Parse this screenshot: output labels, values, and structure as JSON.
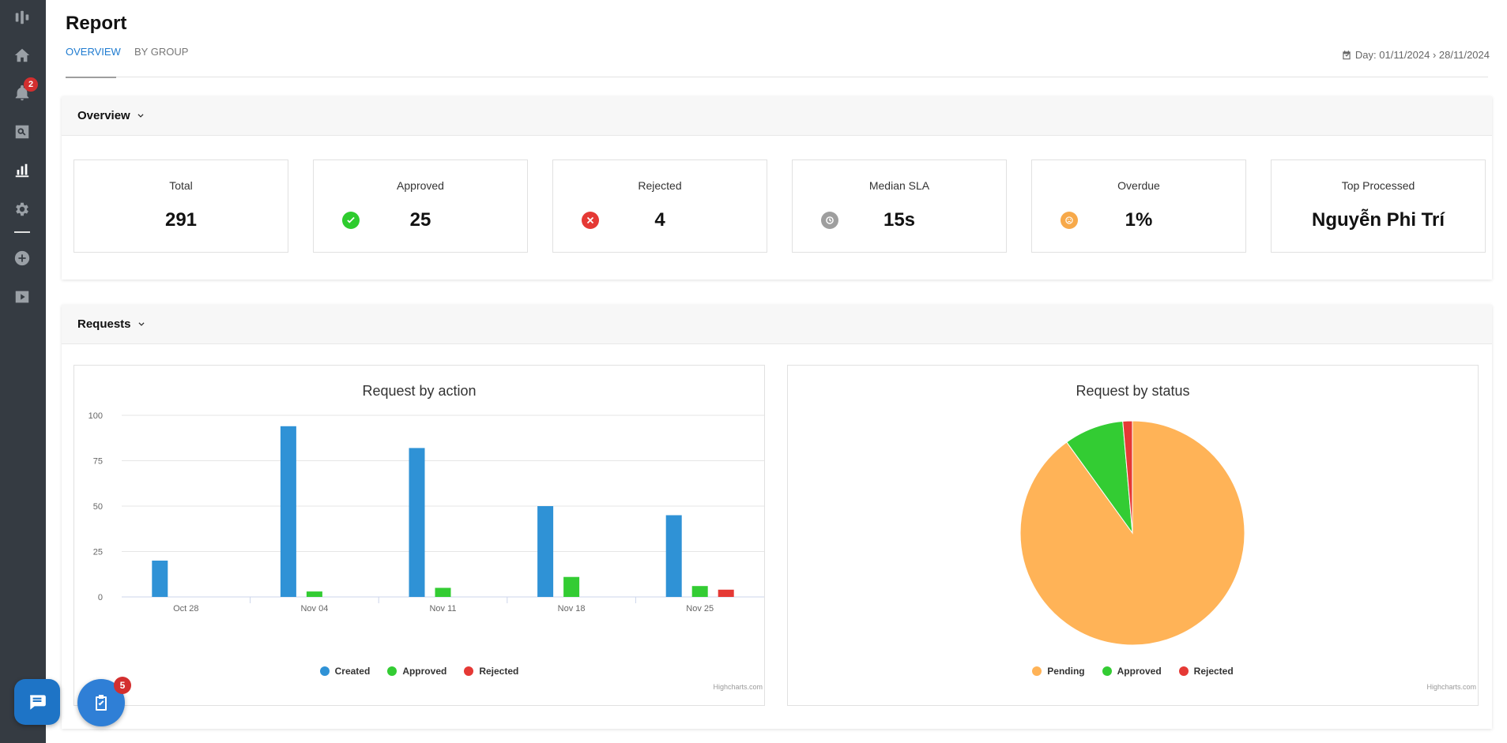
{
  "sidebar": {
    "items": [
      {
        "icon": "logo-icon"
      },
      {
        "icon": "home-icon"
      },
      {
        "icon": "bell-icon",
        "badge": "2"
      },
      {
        "icon": "search-document-icon"
      },
      {
        "icon": "bar-chart-icon",
        "active": true
      },
      {
        "icon": "gear-icon"
      },
      {
        "icon": "plus-circle-icon"
      },
      {
        "icon": "video-icon"
      }
    ],
    "notification_badge": "2"
  },
  "header": {
    "title": "Report",
    "tabs": [
      {
        "label": "OVERVIEW",
        "active": true
      },
      {
        "label": "BY GROUP",
        "active": false
      }
    ],
    "date_range": "Day: 01/11/2024 › 28/11/2024"
  },
  "overview": {
    "title": "Overview",
    "cards": [
      {
        "label": "Total",
        "value": "291"
      },
      {
        "label": "Approved",
        "value": "25",
        "icon": "check-circle-icon",
        "color": "#2ecc2e"
      },
      {
        "label": "Rejected",
        "value": "4",
        "icon": "x-circle-icon",
        "color": "#e53935"
      },
      {
        "label": "Median SLA",
        "value": "15s",
        "icon": "history-icon",
        "color": "#9e9e9e"
      },
      {
        "label": "Overdue",
        "value": "1%",
        "icon": "sad-face-icon",
        "color": "#f7a94a"
      },
      {
        "label": "Top Processed",
        "value": "Nguyễn Phi Trí"
      }
    ]
  },
  "requests": {
    "title": "Requests",
    "credits": "Highcharts.com"
  },
  "chart_data": [
    {
      "type": "bar",
      "title": "Request by action",
      "categories": [
        "Oct 28",
        "Nov 04",
        "Nov 11",
        "Nov 18",
        "Nov 25"
      ],
      "series": [
        {
          "name": "Created",
          "color": "#2f92d6",
          "values": [
            20,
            94,
            82,
            50,
            45
          ]
        },
        {
          "name": "Approved",
          "color": "#33cc33",
          "values": [
            0,
            3,
            5,
            11,
            6
          ]
        },
        {
          "name": "Rejected",
          "color": "#e53935",
          "values": [
            0,
            0,
            0,
            0,
            4
          ]
        }
      ],
      "ylim": [
        0,
        100
      ],
      "yticks": [
        0,
        25,
        50,
        75,
        100
      ],
      "xlabel": "",
      "ylabel": "",
      "legend": "bottom-center"
    },
    {
      "type": "pie",
      "title": "Request by status",
      "slices": [
        {
          "name": "Pending",
          "color": "#ffb357",
          "value": 262
        },
        {
          "name": "Approved",
          "color": "#33cc33",
          "value": 25
        },
        {
          "name": "Rejected",
          "color": "#e53935",
          "value": 4
        }
      ],
      "legend": "bottom-center"
    }
  ],
  "fabs": {
    "chat_icon": "chat-icon",
    "tasks_icon": "clipboard-check-icon",
    "tasks_badge": "5"
  }
}
